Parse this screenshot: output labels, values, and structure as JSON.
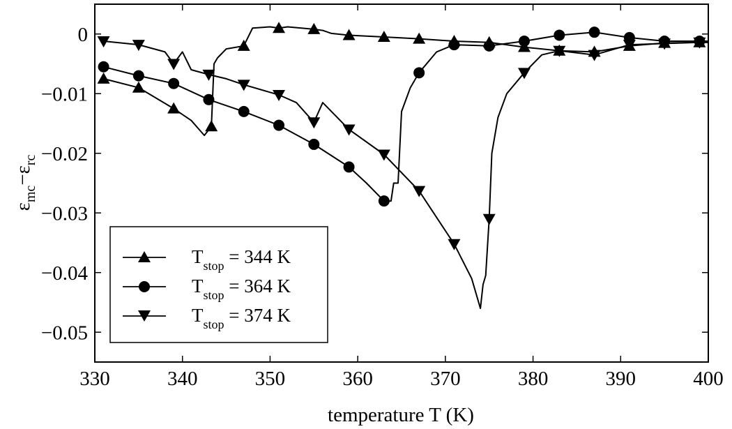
{
  "chart_data": {
    "type": "line",
    "title": "",
    "xlabel": "temperature T (K)",
    "ylabel": {
      "base": "ε",
      "sub1": "mc",
      "minus": "−",
      "base2": "ε",
      "sub2": "rc"
    },
    "xlim": [
      330,
      400
    ],
    "ylim": [
      -0.055,
      0.005
    ],
    "xticks": [
      330,
      340,
      350,
      360,
      370,
      380,
      390,
      400
    ],
    "xtick_labels": [
      "330",
      "340",
      "350",
      "360",
      "370",
      "380",
      "390",
      "400"
    ],
    "yticks": [
      0,
      -0.01,
      -0.02,
      -0.03,
      -0.04,
      -0.05
    ],
    "ytick_labels": [
      "0",
      "−0.01",
      "−0.02",
      "−0.03",
      "−0.04",
      "−0.05"
    ],
    "grid": false,
    "legend_position": "bottom-left",
    "series": [
      {
        "name": "T_stop = 344 K",
        "legend": {
          "sym": "T",
          "sub": "stop",
          "rest": " = 344 K"
        },
        "marker": "triangle-up",
        "color": "#000000",
        "points": [
          [
            331,
            -0.0075
          ],
          [
            335,
            -0.009
          ],
          [
            339,
            -0.0125
          ],
          [
            341,
            -0.0145
          ],
          [
            342.5,
            -0.017
          ],
          [
            343.3,
            -0.0155
          ],
          [
            343.6,
            -0.005
          ],
          [
            344,
            -0.004
          ],
          [
            345,
            -0.0025
          ],
          [
            347,
            -0.002
          ],
          [
            348,
            0.001
          ],
          [
            350,
            0.0012
          ],
          [
            351,
            0.001
          ],
          [
            352,
            0.0012
          ],
          [
            355,
            0.0008
          ],
          [
            356,
            0.0006
          ],
          [
            357,
            0.0001
          ],
          [
            359,
            -0.0002
          ],
          [
            363,
            -0.0005
          ],
          [
            367,
            -0.0008
          ],
          [
            371,
            -0.0012
          ],
          [
            375,
            -0.0014
          ],
          [
            379,
            -0.0022
          ],
          [
            383,
            -0.0028
          ],
          [
            387,
            -0.003
          ],
          [
            391,
            -0.002
          ],
          [
            395,
            -0.0015
          ],
          [
            399,
            -0.0014
          ],
          [
            400,
            -0.0014
          ]
        ],
        "markers_at": [
          331,
          335,
          339,
          343.3,
          347,
          351,
          355,
          359,
          363,
          367,
          371,
          375,
          379,
          383,
          387,
          391,
          395,
          399
        ]
      },
      {
        "name": "T_stop = 364 K",
        "legend": {
          "sym": "T",
          "sub": "stop",
          "rest": " = 364 K"
        },
        "marker": "circle",
        "color": "#000000",
        "points": [
          [
            331,
            -0.0055
          ],
          [
            335,
            -0.007
          ],
          [
            339,
            -0.0083
          ],
          [
            343,
            -0.011
          ],
          [
            347,
            -0.013
          ],
          [
            351,
            -0.0153
          ],
          [
            355,
            -0.0185
          ],
          [
            359,
            -0.0223
          ],
          [
            361,
            -0.025
          ],
          [
            363,
            -0.028
          ],
          [
            363.8,
            -0.028
          ],
          [
            364.1,
            -0.025
          ],
          [
            364.6,
            -0.025
          ],
          [
            365,
            -0.013
          ],
          [
            366,
            -0.009
          ],
          [
            367,
            -0.0065
          ],
          [
            369,
            -0.003
          ],
          [
            371,
            -0.0018
          ],
          [
            375,
            -0.002
          ],
          [
            379,
            -0.0012
          ],
          [
            383,
            -0.0002
          ],
          [
            387,
            0.0003
          ],
          [
            391,
            -0.0006
          ],
          [
            395,
            -0.0012
          ],
          [
            399,
            -0.0012
          ],
          [
            400,
            -0.0012
          ]
        ],
        "markers_at": [
          331,
          335,
          339,
          343,
          347,
          351,
          355,
          359,
          363,
          367,
          371,
          375,
          379,
          383,
          387,
          391,
          395,
          399
        ]
      },
      {
        "name": "T_stop = 374 K",
        "legend": {
          "sym": "T",
          "sub": "stop",
          "rest": " = 374 K"
        },
        "marker": "triangle-down",
        "color": "#000000",
        "points": [
          [
            331,
            -0.0012
          ],
          [
            335,
            -0.0018
          ],
          [
            338,
            -0.003
          ],
          [
            339,
            -0.005
          ],
          [
            340,
            -0.003
          ],
          [
            341,
            -0.006
          ],
          [
            343,
            -0.0068
          ],
          [
            345,
            -0.0075
          ],
          [
            347,
            -0.0085
          ],
          [
            351,
            -0.0102
          ],
          [
            353,
            -0.0115
          ],
          [
            355,
            -0.0148
          ],
          [
            356,
            -0.0115
          ],
          [
            359,
            -0.016
          ],
          [
            363,
            -0.0202
          ],
          [
            367,
            -0.0263
          ],
          [
            371,
            -0.0352
          ],
          [
            373,
            -0.041
          ],
          [
            374,
            -0.046
          ],
          [
            374.3,
            -0.042
          ],
          [
            374.6,
            -0.0405
          ],
          [
            375,
            -0.031
          ],
          [
            375.3,
            -0.02
          ],
          [
            376,
            -0.014
          ],
          [
            377,
            -0.01
          ],
          [
            379,
            -0.0065
          ],
          [
            381,
            -0.0035
          ],
          [
            383,
            -0.0028
          ],
          [
            387,
            -0.0035
          ],
          [
            391,
            -0.0018
          ],
          [
            395,
            -0.0016
          ],
          [
            399,
            -0.0014
          ],
          [
            400,
            -0.0014
          ]
        ],
        "markers_at": [
          331,
          335,
          339,
          343,
          347,
          351,
          355,
          359,
          363,
          367,
          371,
          375,
          379,
          383,
          387,
          391,
          395,
          399
        ]
      }
    ]
  }
}
